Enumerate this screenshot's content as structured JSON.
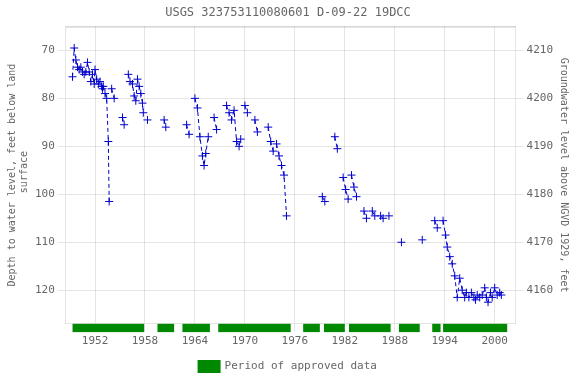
{
  "chart_data": {
    "type": "line",
    "title": "USGS 323753110080601 D-09-22 19DCC",
    "ylabel": "Depth to water level, feet below land\n surface",
    "y2label": "Groundwater level above NGVD 1929, feet",
    "x": [
      1949.3,
      1949.5,
      1949.7,
      1949.9,
      1950.1,
      1950.3,
      1950.5,
      1950.7,
      1950.9,
      1951.1,
      1951.3,
      1951.5,
      1951.7,
      1951.9,
      1952.0,
      1952.2,
      1952.4,
      1952.6,
      1952.8,
      1952.9,
      null,
      1953.0,
      1953.2,
      1953.4,
      1953.6,
      1953.7,
      null,
      1954.0,
      1954.3,
      null,
      1955.3,
      1955.5,
      null,
      1956.0,
      1956.2,
      1956.5,
      1956.7,
      1956.9,
      1957.1,
      1957.3,
      1957.5,
      1957.7,
      1957.8,
      null,
      1958.3,
      null,
      1960.3,
      1960.5,
      null,
      1963.0,
      1963.3,
      null,
      1964.0,
      1964.3,
      1964.6,
      1964.9,
      1965.1,
      1965.3,
      1965.6,
      null,
      1966.3,
      1966.6,
      null,
      1967.8,
      1968.1,
      1968.4,
      1968.7,
      1969.0,
      1969.3,
      1969.5,
      null,
      1970.0,
      1970.3,
      null,
      1971.2,
      1971.5,
      null,
      1972.8,
      1973.1,
      1973.4,
      null,
      1973.8,
      1974.1,
      1974.4,
      1974.7,
      1975.0,
      null,
      1979.3,
      1979.6,
      null,
      1980.8,
      1981.1,
      null,
      1981.8,
      1982.1,
      1982.4,
      null,
      1982.8,
      1983.1,
      1983.4,
      null,
      1984.3,
      1984.6,
      null,
      1985.3,
      1985.6,
      null,
      1986.3,
      1986.6,
      null,
      1987.3,
      null,
      1988.8,
      null,
      1991.3,
      null,
      1992.8,
      1993.1,
      null,
      1993.8,
      1994.1,
      1994.3,
      1994.6,
      1994.9,
      1995.2,
      1995.5,
      1995.8,
      1996.1,
      1996.4,
      1996.6,
      1996.9,
      1997.2,
      1997.5,
      1997.7,
      1997.9,
      1998.2,
      1998.5,
      1998.8,
      1999.0,
      1999.2,
      1999.5,
      1999.7,
      2000.0,
      2000.3,
      2000.6,
      2000.8
    ],
    "series": [
      {
        "color": "#0000cc",
        "marker": "plus",
        "line_style": "dashed",
        "values": [
          75.5,
          69.5,
          72.0,
          73.5,
          74.0,
          73.5,
          74.5,
          75.0,
          74.5,
          72.5,
          74.5,
          76.5,
          75.0,
          77.0,
          74.0,
          76.0,
          77.0,
          76.5,
          77.5,
          78.0,
          null,
          77.5,
          79.0,
          80.0,
          89.0,
          101.5,
          null,
          78.0,
          80.0,
          null,
          84.0,
          85.5,
          null,
          75.0,
          76.5,
          77.0,
          79.5,
          80.5,
          76.0,
          77.5,
          79.0,
          81.0,
          83.0,
          null,
          84.5,
          null,
          84.5,
          86.0,
          null,
          85.5,
          87.5,
          null,
          80.0,
          82.0,
          88.0,
          92.0,
          94.0,
          91.5,
          88.0,
          null,
          84.0,
          86.5,
          null,
          81.5,
          83.0,
          84.5,
          82.5,
          89.0,
          90.0,
          88.5,
          null,
          81.5,
          83.0,
          null,
          84.5,
          87.0,
          null,
          86.0,
          89.0,
          91.0,
          null,
          89.5,
          92.0,
          94.0,
          96.0,
          104.5,
          null,
          100.5,
          101.5,
          null,
          88.0,
          90.5,
          null,
          96.5,
          99.0,
          101.0,
          null,
          96.0,
          98.5,
          100.5,
          null,
          103.5,
          105.0,
          null,
          103.5,
          104.5,
          null,
          104.5,
          105.0,
          null,
          104.5,
          null,
          110.0,
          null,
          109.5,
          null,
          105.5,
          107.0,
          null,
          105.5,
          108.5,
          111.0,
          113.0,
          114.5,
          117.0,
          121.5,
          117.5,
          120.0,
          121.5,
          120.5,
          121.5,
          120.5,
          121.5,
          122.0,
          121.0,
          121.5,
          121.0,
          119.5,
          121.5,
          122.5,
          120.5,
          121.5,
          119.5,
          121.0,
          120.5,
          121.0
        ]
      },
      {
        "name": "Period of approved data",
        "color": "#008800",
        "type": "span",
        "ranges": [
          [
            1949.3,
            1957.9
          ],
          [
            1959.5,
            1961.5
          ],
          [
            1962.5,
            1965.8
          ],
          [
            1966.8,
            1975.5
          ],
          [
            1977.0,
            1979.0
          ],
          [
            1979.5,
            1982.0
          ],
          [
            1982.5,
            1987.5
          ],
          [
            1988.5,
            1991.0
          ],
          [
            1992.5,
            1993.5
          ],
          [
            1993.8,
            2001.5
          ]
        ]
      }
    ],
    "xlim": [
      1948.5,
      2002.5
    ],
    "xticks": [
      1952,
      1958,
      1964,
      1970,
      1976,
      1982,
      1988,
      1994,
      2000
    ],
    "ylim": [
      127,
      65
    ],
    "yticks": [
      70,
      80,
      90,
      100,
      110,
      120
    ],
    "y2lim": [
      4153,
      4215
    ],
    "y2ticks": [
      4160,
      4170,
      4180,
      4190,
      4200,
      4210
    ],
    "grid": true,
    "legend": "lower center"
  }
}
